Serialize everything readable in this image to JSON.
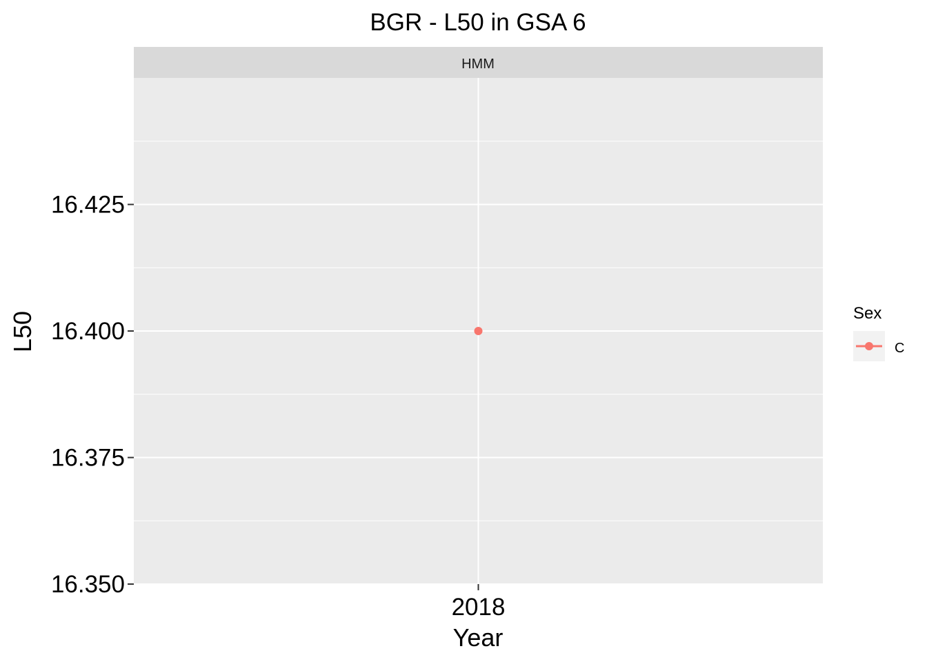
{
  "chart_data": {
    "type": "line",
    "title": "BGR  - L50 in GSA 6",
    "facet_label": "HMM",
    "xlabel": "Year",
    "ylabel": "L50",
    "categories": [
      "2018"
    ],
    "ylim": [
      16.35,
      16.45
    ],
    "y_ticks": [
      16.35,
      16.375,
      16.4,
      16.425
    ],
    "y_tick_labels": [
      "16.350",
      "16.375",
      "16.400",
      "16.425"
    ],
    "grid": true,
    "legend": {
      "title": "Sex",
      "placement": "right",
      "entries": [
        "C"
      ]
    },
    "series": [
      {
        "name": "C",
        "color": "#F8766D",
        "values": [
          16.4
        ]
      }
    ]
  }
}
